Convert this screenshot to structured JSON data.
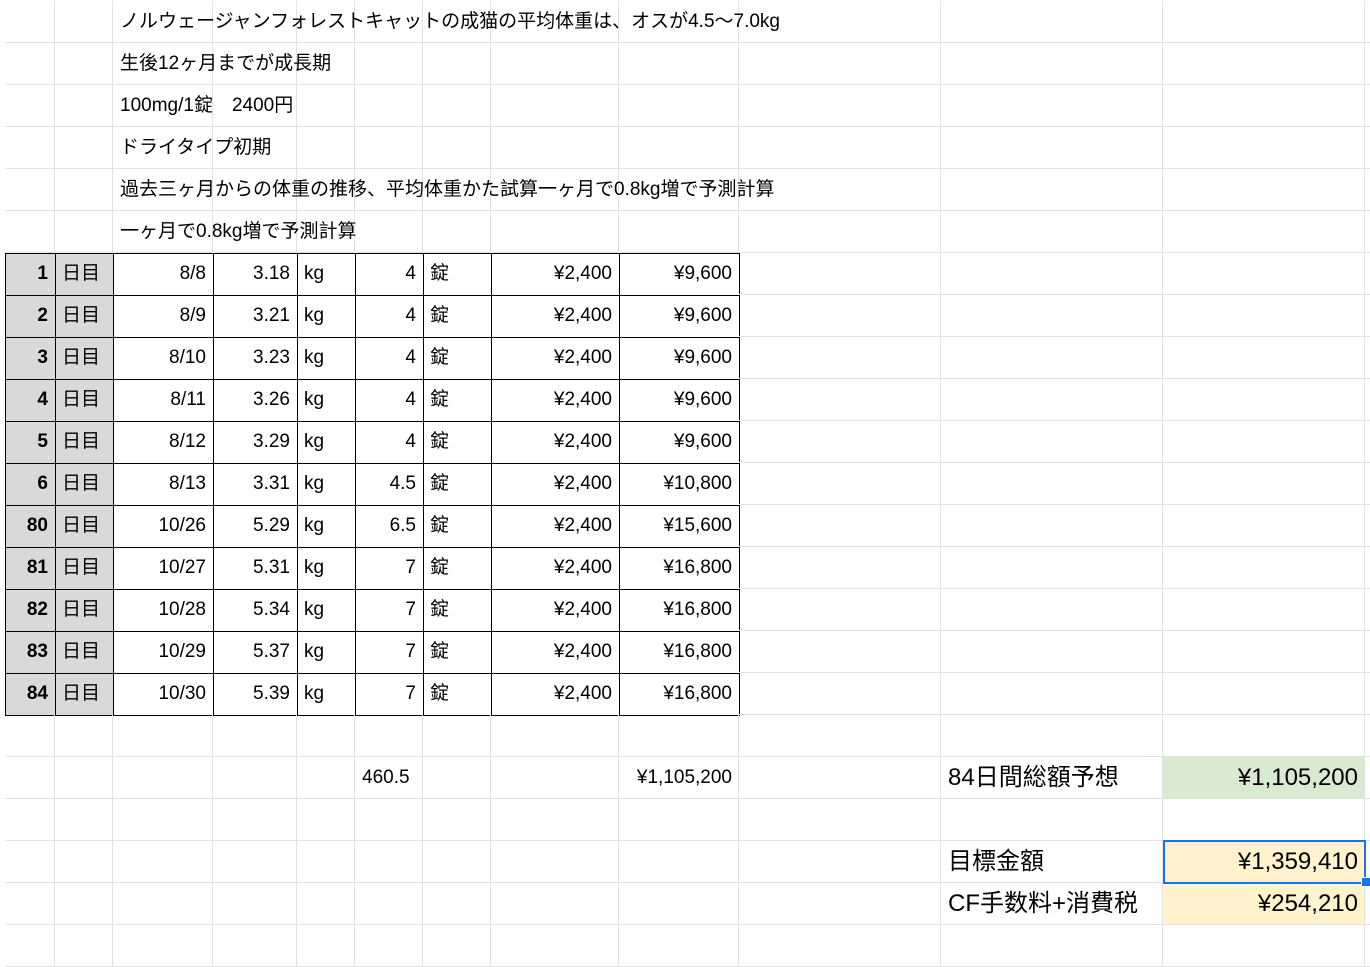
{
  "notes": [
    "ノルウェージャンフォレストキャットの成猫の平均体重は、オスが4.5〜7.0kg",
    "生後12ヶ月までが成長期",
    "100mg/1錠　2400円",
    "ドライタイプ初期",
    "過去三ヶ月からの体重の推移、平均体重かた試算一ヶ月で0.8kg増で予測計算",
    "一ヶ月で0.8kg増で予測計算"
  ],
  "rows": [
    {
      "day": "1",
      "day_unit": "日目",
      "date": "8/8",
      "weight": "3.18",
      "weight_unit": "kg",
      "tablets": "4",
      "tablet_unit": "錠",
      "price": "¥2,400",
      "cost": "¥9,600"
    },
    {
      "day": "2",
      "day_unit": "日目",
      "date": "8/9",
      "weight": "3.21",
      "weight_unit": "kg",
      "tablets": "4",
      "tablet_unit": "錠",
      "price": "¥2,400",
      "cost": "¥9,600"
    },
    {
      "day": "3",
      "day_unit": "日目",
      "date": "8/10",
      "weight": "3.23",
      "weight_unit": "kg",
      "tablets": "4",
      "tablet_unit": "錠",
      "price": "¥2,400",
      "cost": "¥9,600"
    },
    {
      "day": "4",
      "day_unit": "日目",
      "date": "8/11",
      "weight": "3.26",
      "weight_unit": "kg",
      "tablets": "4",
      "tablet_unit": "錠",
      "price": "¥2,400",
      "cost": "¥9,600"
    },
    {
      "day": "5",
      "day_unit": "日目",
      "date": "8/12",
      "weight": "3.29",
      "weight_unit": "kg",
      "tablets": "4",
      "tablet_unit": "錠",
      "price": "¥2,400",
      "cost": "¥9,600"
    },
    {
      "day": "6",
      "day_unit": "日目",
      "date": "8/13",
      "weight": "3.31",
      "weight_unit": "kg",
      "tablets": "4.5",
      "tablet_unit": "錠",
      "price": "¥2,400",
      "cost": "¥10,800"
    },
    {
      "day": "80",
      "day_unit": "日目",
      "date": "10/26",
      "weight": "5.29",
      "weight_unit": "kg",
      "tablets": "6.5",
      "tablet_unit": "錠",
      "price": "¥2,400",
      "cost": "¥15,600"
    },
    {
      "day": "81",
      "day_unit": "日目",
      "date": "10/27",
      "weight": "5.31",
      "weight_unit": "kg",
      "tablets": "7",
      "tablet_unit": "錠",
      "price": "¥2,400",
      "cost": "¥16,800"
    },
    {
      "day": "82",
      "day_unit": "日目",
      "date": "10/28",
      "weight": "5.34",
      "weight_unit": "kg",
      "tablets": "7",
      "tablet_unit": "錠",
      "price": "¥2,400",
      "cost": "¥16,800"
    },
    {
      "day": "83",
      "day_unit": "日目",
      "date": "10/29",
      "weight": "5.37",
      "weight_unit": "kg",
      "tablets": "7",
      "tablet_unit": "錠",
      "price": "¥2,400",
      "cost": "¥16,800"
    },
    {
      "day": "84",
      "day_unit": "日目",
      "date": "10/30",
      "weight": "5.39",
      "weight_unit": "kg",
      "tablets": "7",
      "tablet_unit": "錠",
      "price": "¥2,400",
      "cost": "¥16,800"
    }
  ],
  "totals": {
    "tablets_total": "460.5",
    "cost_total": "¥1,105,200"
  },
  "summary": [
    {
      "label": "84日間総額予想",
      "value": "¥1,105,200",
      "color": "#d9ead3"
    },
    {
      "label": "目標金額",
      "value": "¥1,359,410",
      "color": "#fff2cc",
      "selected": true
    },
    {
      "label": "CF手数料+消費税",
      "value": "¥254,210",
      "color": "#fff2cc"
    }
  ],
  "colors": {
    "header_fill": "#d9d9d9",
    "selection": "#1a73e8",
    "gridline": "#e2e2e2"
  }
}
